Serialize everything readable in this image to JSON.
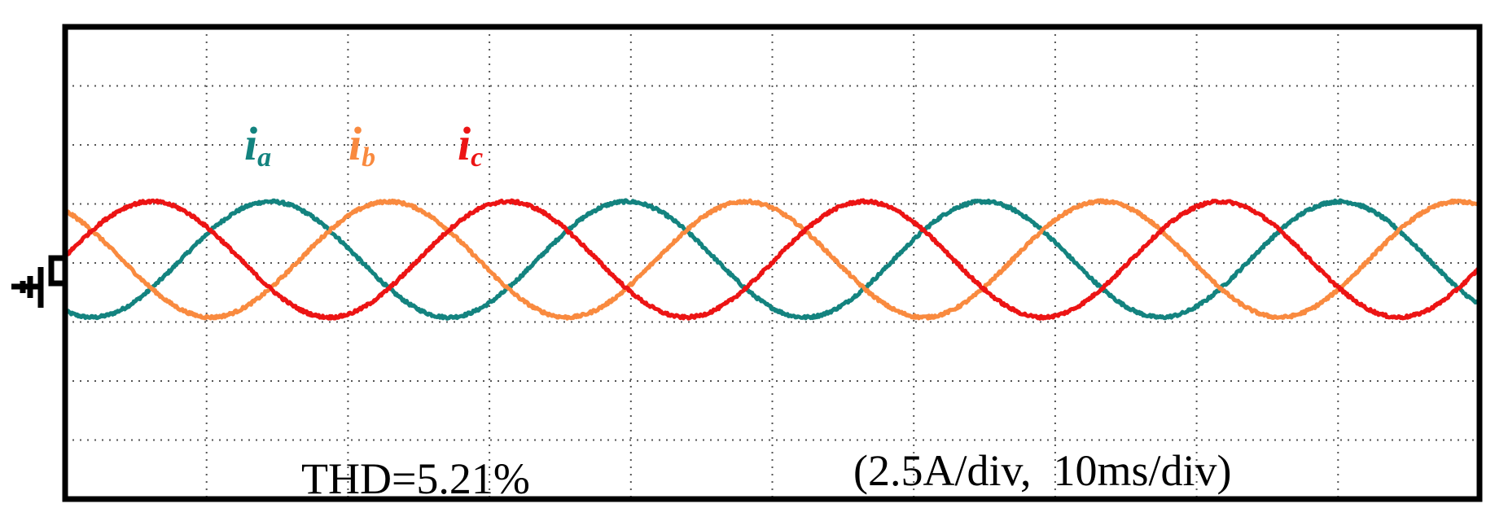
{
  "chart_data": {
    "type": "line",
    "title": "",
    "xlabel": "",
    "ylabel": "",
    "grid": true,
    "x_divisions": 10,
    "y_divisions": 8,
    "x_unit": "ms",
    "y_unit": "A",
    "x_per_div": 10,
    "y_per_div": 2.5,
    "xlim": [
      0,
      100
    ],
    "ylim": [
      -10,
      10
    ],
    "series": [
      {
        "name": "i",
        "subscript": "a",
        "color": "#13837f",
        "amplitude": 2.45,
        "offset": 0.15,
        "peak_time": 14.5,
        "period": 25.2
      },
      {
        "name": "i",
        "subscript": "b",
        "color": "#f98a3f",
        "amplitude": 2.45,
        "offset": 0.15,
        "peak_time": 22.9,
        "period": 25.2
      },
      {
        "name": "i",
        "subscript": "c",
        "color": "#ec1414",
        "amplitude": 2.45,
        "offset": 0.15,
        "peak_time": 6.1,
        "period": 25.2
      }
    ],
    "annotations": {
      "thd": "THD=5.21%",
      "scale": "(2.5A/div,  10ms/div)"
    }
  }
}
